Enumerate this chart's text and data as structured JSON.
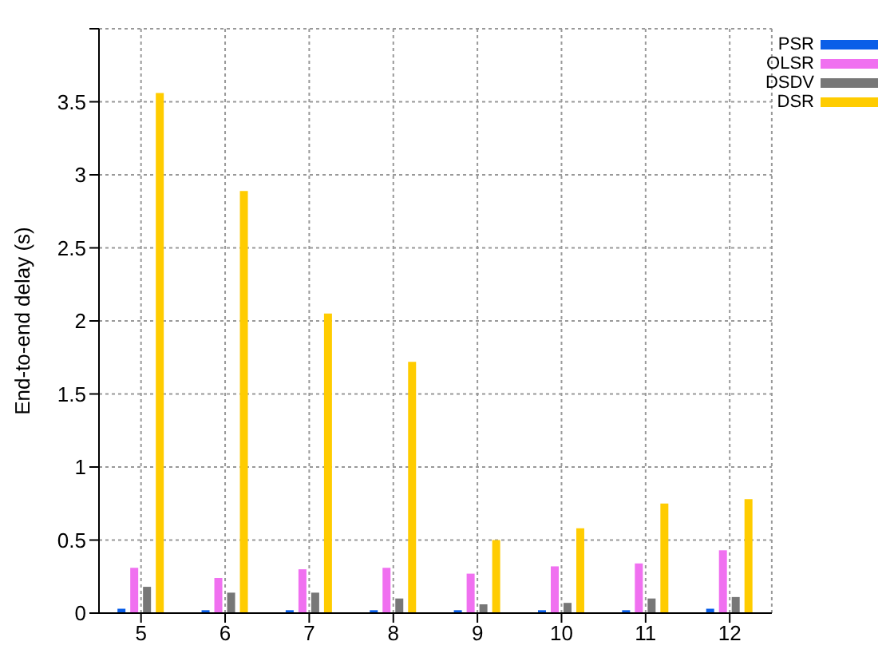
{
  "chart_data": {
    "type": "bar",
    "ylabel": "End-to-end delay (s)",
    "categories": [
      "5",
      "6",
      "7",
      "8",
      "9",
      "10",
      "11",
      "12"
    ],
    "series": [
      {
        "name": "PSR",
        "color": "#0a5ee8",
        "values": [
          0.03,
          0.02,
          0.02,
          0.02,
          0.02,
          0.02,
          0.02,
          0.03
        ]
      },
      {
        "name": "OLSR",
        "color": "#f070f0",
        "values": [
          0.31,
          0.24,
          0.3,
          0.31,
          0.27,
          0.32,
          0.34,
          0.43
        ]
      },
      {
        "name": "DSDV",
        "color": "#777777",
        "values": [
          0.18,
          0.14,
          0.14,
          0.1,
          0.06,
          0.07,
          0.1,
          0.11
        ]
      },
      {
        "name": "DSR",
        "color": "#ffcc00",
        "values": [
          3.56,
          2.89,
          2.05,
          1.72,
          0.5,
          0.58,
          0.75,
          0.78
        ]
      }
    ],
    "ylim": [
      0,
      4
    ],
    "yticks": [
      0,
      0.5,
      1,
      1.5,
      2,
      2.5,
      3,
      3.5,
      {
        "value": 4,
        "label": null
      }
    ],
    "grid": true,
    "legend": "top right"
  }
}
